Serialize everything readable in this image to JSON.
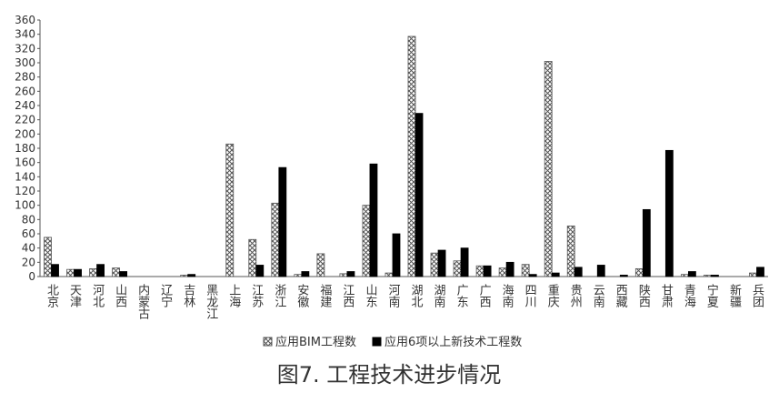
{
  "chart_data": {
    "type": "bar",
    "title": "图7. 工程技术进步情况",
    "categories": [
      "北京",
      "天津",
      "河北",
      "山西",
      "内蒙古",
      "辽宁",
      "吉林",
      "黑龙江",
      "上海",
      "江苏",
      "浙江",
      "安徽",
      "福建",
      "江西",
      "山东",
      "河南",
      "湖北",
      "湖南",
      "广东",
      "广西",
      "海南",
      "四川",
      "重庆",
      "贵州",
      "云南",
      "西藏",
      "陕西",
      "甘肃",
      "青海",
      "宁夏",
      "新疆",
      "兵团"
    ],
    "series": [
      {
        "name": "应用BIM工程数",
        "color": "#555555",
        "pattern": "crosshatch",
        "values": [
          55,
          10,
          11,
          12,
          0,
          0,
          2,
          0,
          186,
          52,
          103,
          3,
          32,
          4,
          100,
          5,
          337,
          33,
          22,
          15,
          12,
          17,
          302,
          71,
          0,
          0,
          11,
          0,
          3,
          2,
          0,
          5
        ]
      },
      {
        "name": "应用6项以上新技术工程数",
        "color": "#000000",
        "pattern": "solid",
        "values": [
          17,
          10,
          17,
          7,
          0,
          0,
          3,
          0,
          0,
          16,
          153,
          7,
          0,
          7,
          158,
          60,
          229,
          37,
          40,
          15,
          20,
          3,
          5,
          13,
          16,
          2,
          94,
          177,
          7,
          2,
          0,
          13
        ]
      }
    ],
    "ylim": [
      0,
      360
    ],
    "yticks": [
      0,
      20,
      40,
      60,
      80,
      100,
      120,
      140,
      160,
      180,
      200,
      220,
      240,
      260,
      280,
      300,
      320,
      340,
      360
    ],
    "grid": false
  }
}
